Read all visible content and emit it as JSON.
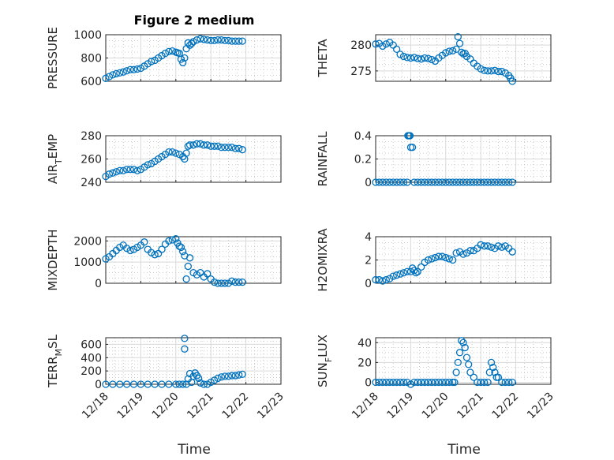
{
  "title": "Figure 2 medium",
  "xlabel": "Time",
  "x_ticks": [
    "12/18",
    "12/19",
    "12/20",
    "12/21",
    "12/22",
    "12/23"
  ],
  "colors": {
    "marker": "#0072BD",
    "axis": "#262626",
    "grid": "#d9d9d9"
  },
  "chart_data": [
    {
      "type": "scatter",
      "panel": 1,
      "ylabel": "PRESSURE",
      "ylim": [
        600,
        1000
      ],
      "yticks": [
        600,
        800,
        1000
      ],
      "xlim": [
        0,
        5
      ],
      "x": [
        0,
        0.1,
        0.2,
        0.3,
        0.4,
        0.5,
        0.6,
        0.7,
        0.8,
        0.9,
        1.0,
        1.1,
        1.2,
        1.3,
        1.4,
        1.5,
        1.6,
        1.7,
        1.8,
        1.9,
        2.0,
        2.05,
        2.1,
        2.15,
        2.2,
        2.25,
        2.3,
        2.35,
        2.4,
        2.45,
        2.5,
        2.6,
        2.7,
        2.8,
        2.9,
        3.0,
        3.1,
        3.2,
        3.3,
        3.4,
        3.5,
        3.6,
        3.7,
        3.8,
        3.9
      ],
      "y": [
        625,
        640,
        655,
        665,
        672,
        680,
        690,
        700,
        700,
        705,
        712,
        730,
        750,
        770,
        780,
        800,
        820,
        840,
        855,
        860,
        850,
        845,
        840,
        790,
        760,
        800,
        880,
        930,
        910,
        925,
        940,
        955,
        965,
        960,
        955,
        950,
        950,
        955,
        955,
        950,
        950,
        945,
        945,
        945,
        945
      ]
    },
    {
      "type": "scatter",
      "panel": 2,
      "ylabel": "THETA",
      "ylim": [
        273,
        282
      ],
      "yticks": [
        275,
        280
      ],
      "xlim": [
        0,
        5
      ],
      "x": [
        0,
        0.1,
        0.2,
        0.3,
        0.4,
        0.5,
        0.6,
        0.7,
        0.8,
        0.9,
        1.0,
        1.1,
        1.2,
        1.3,
        1.4,
        1.5,
        1.6,
        1.7,
        1.8,
        1.9,
        2.0,
        2.1,
        2.2,
        2.3,
        2.35,
        2.4,
        2.45,
        2.5,
        2.55,
        2.6,
        2.7,
        2.8,
        2.9,
        3.0,
        3.1,
        3.2,
        3.3,
        3.4,
        3.5,
        3.6,
        3.7,
        3.8,
        3.85,
        3.9
      ],
      "y": [
        280.2,
        280.3,
        279.8,
        280.2,
        280.5,
        280.0,
        279.2,
        278.2,
        277.8,
        277.6,
        277.5,
        277.6,
        277.4,
        277.3,
        277.5,
        277.4,
        277.2,
        276.9,
        277.5,
        278.0,
        278.5,
        278.8,
        278.9,
        279.2,
        281.6,
        280.3,
        278.6,
        278.3,
        278.4,
        277.8,
        277.3,
        276.5,
        275.9,
        275.4,
        275.1,
        275.0,
        275.0,
        275.1,
        274.9,
        274.9,
        274.6,
        274.1,
        273.6,
        273.0
      ]
    },
    {
      "type": "scatter",
      "panel": 3,
      "ylabel": "AIR_TEMP",
      "ylim": [
        240,
        280
      ],
      "yticks": [
        240,
        260,
        280
      ],
      "xlim": [
        0,
        5
      ],
      "x": [
        0,
        0.1,
        0.2,
        0.3,
        0.4,
        0.5,
        0.6,
        0.7,
        0.8,
        0.9,
        1.0,
        1.1,
        1.2,
        1.3,
        1.4,
        1.5,
        1.6,
        1.7,
        1.8,
        1.9,
        2.0,
        2.1,
        2.2,
        2.25,
        2.3,
        2.35,
        2.4,
        2.5,
        2.6,
        2.7,
        2.8,
        2.9,
        3.0,
        3.1,
        3.2,
        3.3,
        3.4,
        3.5,
        3.6,
        3.7,
        3.8,
        3.9
      ],
      "y": [
        245,
        247,
        248,
        249,
        250,
        250,
        251,
        251,
        251,
        250,
        251,
        253,
        255,
        256,
        258,
        260,
        262,
        264,
        266,
        266,
        265,
        264,
        262,
        260,
        265,
        271,
        272,
        272,
        273,
        273,
        272,
        272,
        271,
        271,
        271,
        270,
        270,
        270,
        270,
        269,
        269,
        268
      ]
    },
    {
      "type": "scatter",
      "panel": 4,
      "ylabel": "RAINFALL",
      "ylim": [
        0,
        0.4
      ],
      "yticks": [
        0,
        0.2,
        0.4
      ],
      "xlim": [
        0,
        5
      ],
      "x": [
        0,
        0.1,
        0.2,
        0.3,
        0.4,
        0.5,
        0.6,
        0.7,
        0.8,
        0.9,
        0.92,
        0.95,
        0.98,
        1.0,
        1.05,
        1.1,
        1.2,
        1.3,
        1.4,
        1.5,
        1.6,
        1.7,
        1.8,
        1.9,
        2.0,
        2.1,
        2.2,
        2.3,
        2.4,
        2.5,
        2.6,
        2.7,
        2.8,
        2.9,
        3.0,
        3.1,
        3.2,
        3.3,
        3.4,
        3.5,
        3.6,
        3.7,
        3.8,
        3.9
      ],
      "y": [
        0,
        0,
        0,
        0,
        0,
        0,
        0,
        0,
        0,
        0,
        0.4,
        0.4,
        0.4,
        0.3,
        0.3,
        0,
        0,
        0,
        0,
        0,
        0,
        0,
        0,
        0,
        0,
        0,
        0,
        0,
        0,
        0,
        0,
        0,
        0,
        0,
        0,
        0,
        0,
        0,
        0,
        0,
        0,
        0,
        0,
        0
      ]
    },
    {
      "type": "scatter",
      "panel": 5,
      "ylabel": "MIXDEPTH",
      "ylim": [
        0,
        2200
      ],
      "yticks": [
        0,
        1000,
        2000
      ],
      "xlim": [
        0,
        5
      ],
      "x": [
        0,
        0.1,
        0.2,
        0.3,
        0.4,
        0.5,
        0.6,
        0.7,
        0.8,
        0.9,
        1.0,
        1.1,
        1.2,
        1.3,
        1.4,
        1.5,
        1.6,
        1.7,
        1.8,
        1.9,
        2.0,
        2.05,
        2.1,
        2.15,
        2.2,
        2.25,
        2.3,
        2.35,
        2.4,
        2.5,
        2.6,
        2.7,
        2.8,
        2.9,
        3.0,
        3.1,
        3.2,
        3.3,
        3.4,
        3.5,
        3.6,
        3.7,
        3.8,
        3.9
      ],
      "y": [
        1150,
        1250,
        1400,
        1550,
        1700,
        1800,
        1650,
        1550,
        1600,
        1700,
        1800,
        1950,
        1600,
        1450,
        1350,
        1400,
        1600,
        1850,
        2000,
        2050,
        2100,
        1900,
        1750,
        1700,
        1500,
        1300,
        200,
        800,
        1200,
        500,
        400,
        500,
        300,
        450,
        200,
        50,
        0,
        0,
        0,
        0,
        100,
        50,
        50,
        50
      ]
    },
    {
      "type": "scatter",
      "panel": 6,
      "ylabel": "H2OMIXRA",
      "ylim": [
        0,
        4
      ],
      "yticks": [
        0,
        2,
        4
      ],
      "xlim": [
        0,
        5
      ],
      "x": [
        0,
        0.1,
        0.2,
        0.3,
        0.4,
        0.5,
        0.6,
        0.7,
        0.8,
        0.9,
        1.0,
        1.05,
        1.1,
        1.15,
        1.2,
        1.3,
        1.4,
        1.5,
        1.6,
        1.7,
        1.8,
        1.9,
        2.0,
        2.1,
        2.2,
        2.3,
        2.4,
        2.5,
        2.6,
        2.7,
        2.8,
        2.9,
        3.0,
        3.1,
        3.2,
        3.3,
        3.4,
        3.5,
        3.6,
        3.7,
        3.8,
        3.9
      ],
      "y": [
        0.3,
        0.3,
        0.2,
        0.3,
        0.4,
        0.6,
        0.7,
        0.8,
        0.9,
        1.0,
        1.0,
        1.3,
        1.1,
        0.9,
        1.0,
        1.4,
        1.8,
        2.0,
        2.1,
        2.2,
        2.3,
        2.3,
        2.2,
        2.1,
        2.0,
        2.6,
        2.7,
        2.5,
        2.6,
        2.8,
        2.8,
        3.0,
        3.3,
        3.2,
        3.2,
        3.1,
        3.0,
        3.2,
        3.1,
        3.2,
        3.0,
        2.7
      ]
    },
    {
      "type": "scatter",
      "panel": 7,
      "ylabel": "TERR_MSL",
      "ylim": [
        0,
        700
      ],
      "yticks": [
        0,
        200,
        400,
        600
      ],
      "xlim": [
        0,
        5
      ],
      "x": [
        0,
        0.2,
        0.4,
        0.6,
        0.8,
        1.0,
        1.2,
        1.4,
        1.6,
        1.8,
        2.0,
        2.1,
        2.2,
        2.25,
        2.25,
        2.3,
        2.35,
        2.4,
        2.45,
        2.5,
        2.55,
        2.6,
        2.65,
        2.7,
        2.8,
        2.9,
        3.0,
        3.1,
        3.2,
        3.3,
        3.4,
        3.5,
        3.6,
        3.7,
        3.8,
        3.9
      ],
      "y": [
        0,
        0,
        0,
        0,
        0,
        0,
        0,
        0,
        0,
        0,
        0,
        0,
        0,
        690,
        530,
        0,
        80,
        160,
        30,
        120,
        170,
        130,
        90,
        20,
        0,
        0,
        30,
        60,
        90,
        110,
        120,
        120,
        130,
        130,
        140,
        150
      ]
    },
    {
      "type": "scatter",
      "panel": 8,
      "ylabel": "SUN_FLUX",
      "ylim": [
        -2,
        45
      ],
      "yticks": [
        0,
        20,
        40
      ],
      "xlim": [
        0,
        5
      ],
      "x": [
        0,
        0.1,
        0.2,
        0.3,
        0.4,
        0.5,
        0.6,
        0.7,
        0.8,
        0.9,
        1.0,
        1.1,
        1.2,
        1.3,
        1.4,
        1.5,
        1.6,
        1.7,
        1.8,
        1.9,
        2.0,
        2.1,
        2.2,
        2.25,
        2.3,
        2.35,
        2.4,
        2.45,
        2.5,
        2.55,
        2.6,
        2.65,
        2.7,
        2.8,
        2.9,
        3.0,
        3.1,
        3.2,
        3.25,
        3.3,
        3.35,
        3.4,
        3.45,
        3.5,
        3.6,
        3.7,
        3.8,
        3.9
      ],
      "y": [
        0,
        0,
        0,
        0,
        0,
        0,
        0,
        0,
        0,
        0,
        -2,
        0,
        0,
        0,
        0,
        0,
        0,
        0,
        0,
        0,
        0,
        0,
        0,
        0,
        10,
        20,
        30,
        42,
        40,
        35,
        25,
        18,
        10,
        5,
        0,
        0,
        0,
        0,
        10,
        20,
        15,
        10,
        5,
        5,
        0,
        0,
        0,
        0
      ]
    }
  ]
}
